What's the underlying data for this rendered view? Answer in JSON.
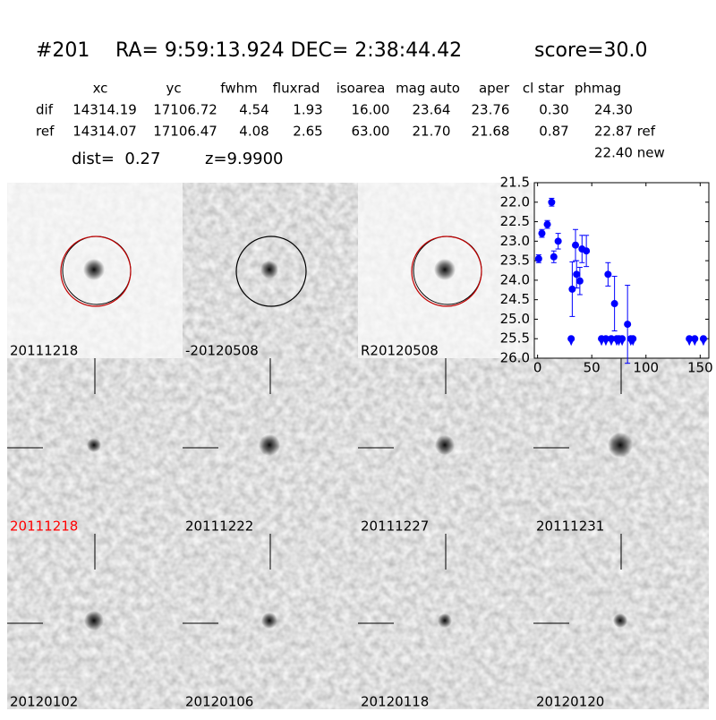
{
  "header": {
    "id": "#201",
    "coords": "RA= 9:59:13.924 DEC= 2:38:44.42",
    "score": "score=30.0"
  },
  "table": {
    "columns": [
      "xc",
      "yc",
      "fwhm",
      "fluxrad",
      "isoarea",
      "mag auto",
      "aper",
      "cl star",
      "phmag"
    ],
    "rows": [
      {
        "label": "dif",
        "cells": [
          "14314.19",
          "17106.72",
          "4.54",
          "1.93",
          "16.00",
          "23.64",
          "23.76",
          "0.30",
          "24.30"
        ]
      },
      {
        "label": "ref",
        "cells": [
          "14314.07",
          "17106.47",
          "4.08",
          "2.65",
          "63.00",
          "21.70",
          "21.68",
          "0.87",
          "22.87 ref"
        ]
      }
    ],
    "extra": "22.40 new"
  },
  "dist": "dist=  0.27",
  "z": "z=9.9900",
  "panels": [
    {
      "label": "20111218"
    },
    {
      "label": "-20120508"
    },
    {
      "label": "R20120508"
    },
    {
      "label": "20111218"
    },
    {
      "label": "20111222"
    },
    {
      "label": "20111227"
    },
    {
      "label": "20111231"
    },
    {
      "label": "20120102"
    },
    {
      "label": "20120106"
    },
    {
      "label": "20120118"
    },
    {
      "label": "20120120"
    }
  ],
  "chart_data": {
    "type": "errorbar",
    "xlim": [
      -3,
      158
    ],
    "xticks": [
      0,
      50,
      100,
      150
    ],
    "ylim": [
      26.0,
      21.5
    ],
    "yticks": [
      21.5,
      {
        "value": 22.0,
        "label": "22.0"
      },
      22.5,
      {
        "value": 23.0,
        "label": "23.0"
      },
      23.5,
      {
        "value": 24.0,
        "label": "24.0"
      },
      24.5,
      {
        "value": 25.0,
        "label": "25.0"
      },
      25.5,
      {
        "value": 26.0,
        "label": "26.0"
      }
    ],
    "color": "#0000ff",
    "series": [
      {
        "marker": "circle",
        "x": [
          1,
          4,
          9,
          13,
          15,
          19,
          32,
          35,
          36,
          39,
          41,
          45,
          65,
          71,
          83
        ],
        "values": [
          23.45,
          22.8,
          22.57,
          22.0,
          23.4,
          23.0,
          24.23,
          23.1,
          23.85,
          24.02,
          23.2,
          23.25,
          23.85,
          24.6,
          25.13
        ],
        "errors": [
          0.1,
          0.1,
          0.1,
          0.1,
          0.15,
          0.2,
          0.7,
          0.4,
          0.35,
          0.35,
          0.35,
          0.4,
          0.3,
          0.7,
          1.0
        ]
      },
      {
        "marker": "triangle-down",
        "x": [
          31,
          59,
          63,
          68,
          73,
          75,
          78,
          86,
          88,
          140,
          145,
          153
        ],
        "values": [
          25.5,
          25.5,
          25.5,
          25.5,
          25.5,
          25.5,
          25.5,
          25.5,
          25.5,
          25.5,
          25.5,
          25.5
        ]
      }
    ]
  }
}
